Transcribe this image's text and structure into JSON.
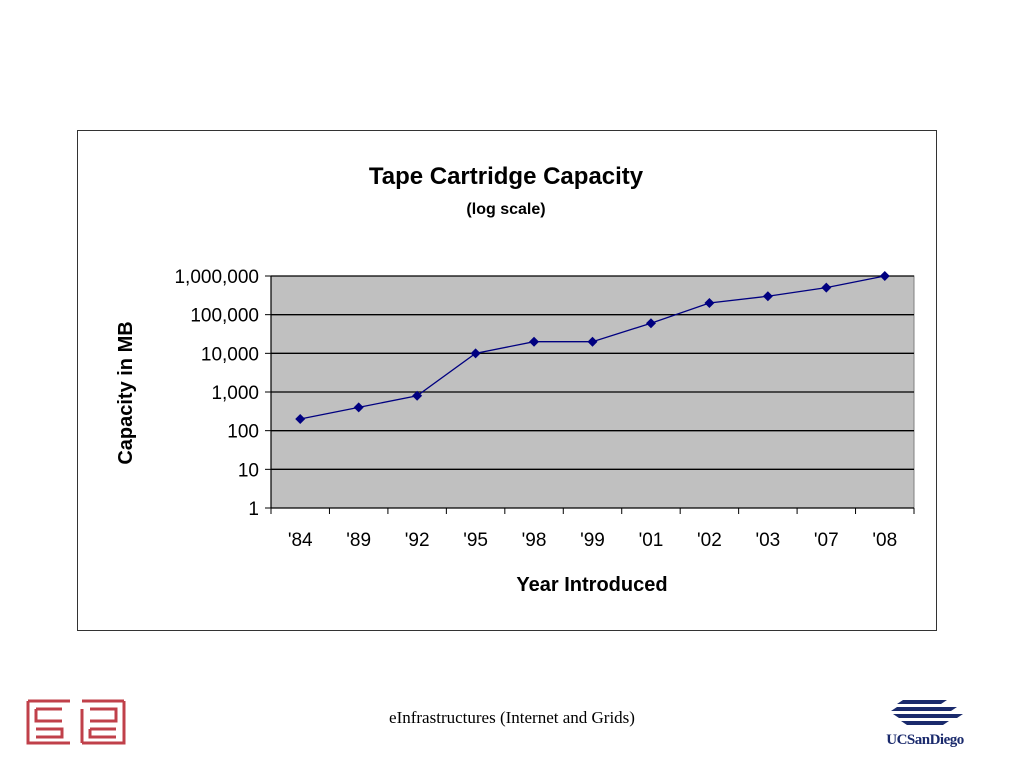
{
  "footer": {
    "text": "eInfrastructures (Internet and Grids)"
  },
  "logos": {
    "right_text": "UCSanDiego"
  },
  "colors": {
    "plot_bg": "#c0c0c0",
    "series": "#000080",
    "grid": "#000000"
  },
  "chart_data": {
    "type": "line",
    "title": "Tape Cartridge Capacity",
    "subtitle": "(log scale)",
    "xlabel": "Year Introduced",
    "ylabel": "Capacity in MB",
    "yscale": "log",
    "ylim": [
      1,
      1000000
    ],
    "yticks": [
      "1",
      "10",
      "100",
      "1,000",
      "10,000",
      "100,000",
      "1,000,000"
    ],
    "grid": true,
    "legend": "none",
    "categories": [
      "'84",
      "'89",
      "'92",
      "'95",
      "'98",
      "'99",
      "'01",
      "'02",
      "'03",
      "'07",
      "'08"
    ],
    "series": [
      {
        "values": [
          200,
          400,
          800,
          10000,
          20000,
          20000,
          60000,
          200000,
          300000,
          500000,
          1000000
        ]
      }
    ]
  }
}
